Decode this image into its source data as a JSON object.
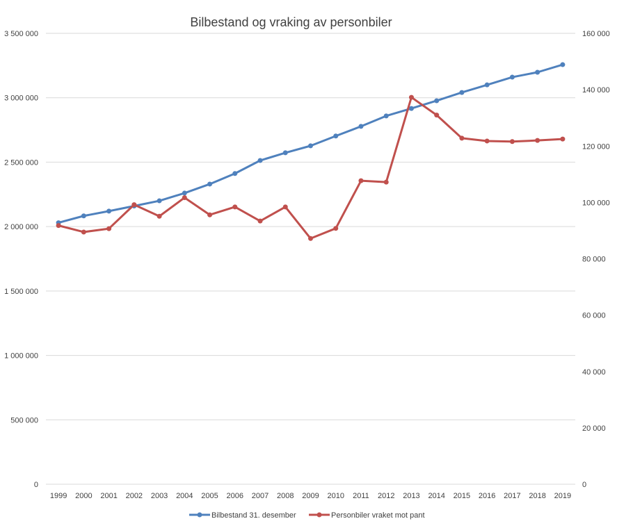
{
  "chart_data": {
    "type": "line",
    "title": "Bilbestand og vraking av personbiler",
    "categories": [
      "1999",
      "2000",
      "2001",
      "2002",
      "2003",
      "2004",
      "2005",
      "2006",
      "2007",
      "2008",
      "2009",
      "2010",
      "2011",
      "2012",
      "2013",
      "2014",
      "2015",
      "2016",
      "2017",
      "2018",
      "2019"
    ],
    "series": [
      {
        "name": "Bilbestand 31. desember",
        "axis": "left",
        "color": "#4f81bd",
        "values": [
          2030000,
          2083000,
          2120000,
          2160000,
          2200000,
          2260000,
          2330000,
          2412000,
          2513000,
          2573000,
          2627000,
          2703000,
          2778000,
          2859000,
          2917000,
          2977000,
          3041000,
          3100000,
          3160000,
          3198000,
          3257000
        ]
      },
      {
        "name": "Personbiler vraket mot pant",
        "axis": "right",
        "color": "#c0504d",
        "values": [
          91800,
          89500,
          90700,
          99200,
          95100,
          101700,
          95600,
          98400,
          93400,
          98400,
          87200,
          90800,
          107700,
          107200,
          137300,
          131000,
          122800,
          121800,
          121600,
          122000,
          122500
        ]
      }
    ],
    "y_left": {
      "min": 0,
      "max": 3500000,
      "ticks": [
        "0",
        "500 000",
        "1 000 000",
        "1 500 000",
        "2 000 000",
        "2 500 000",
        "3 000 000",
        "3 500 000"
      ]
    },
    "y_right": {
      "min": 0,
      "max": 160000,
      "ticks": [
        "0",
        "20 000",
        "40 000",
        "60 000",
        "80 000",
        "100 000",
        "120 000",
        "140 000",
        "160 000"
      ]
    },
    "grid": true,
    "legend_position": "bottom"
  }
}
